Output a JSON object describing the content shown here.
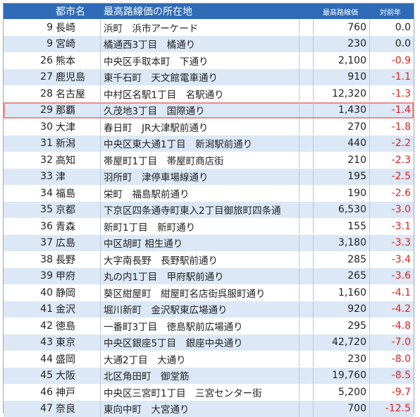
{
  "header": {
    "city": "都市名",
    "location": "最高路線価の所在地",
    "price": "最高路線価",
    "change": "対前年"
  },
  "rows": [
    {
      "rank": "9",
      "city": "長崎",
      "location": "浜町　浜市アーケード",
      "price": "760",
      "change": "0.0"
    },
    {
      "rank": "9",
      "city": "宮崎",
      "location": "橘通西3丁目　橘通り",
      "price": "230",
      "change": "0.0"
    },
    {
      "rank": "26",
      "city": "熊本",
      "location": "中央区手取本町　下通り",
      "price": "2,100",
      "change": "-0.9"
    },
    {
      "rank": "27",
      "city": "鹿児島",
      "location": "東千石町　天文館電車通り",
      "price": "910",
      "change": "-1.1"
    },
    {
      "rank": "28",
      "city": "名古屋",
      "location": "中村区名駅1丁目　名駅通り",
      "price": "12,320",
      "change": "-1.3"
    },
    {
      "rank": "29",
      "city": "那覇",
      "location": "久茂地3丁目　国際通り",
      "price": "1,430",
      "change": "-1.4"
    },
    {
      "rank": "30",
      "city": "大津",
      "location": "春日町　JR大津駅前通り",
      "price": "270",
      "change": "-1.8"
    },
    {
      "rank": "31",
      "city": "新潟",
      "location": "中央区東大通1丁目　新潟駅前通り",
      "price": "440",
      "change": "-2.2"
    },
    {
      "rank": "32",
      "city": "高知",
      "location": "帯屋町1丁目　帯屋町商店街",
      "price": "210",
      "change": "-2.3"
    },
    {
      "rank": "33",
      "city": "津",
      "location": "羽所町　津停車場線通り",
      "price": "195",
      "change": "-2.5"
    },
    {
      "rank": "34",
      "city": "福島",
      "location": "栄町　福島駅前通り",
      "price": "190",
      "change": "-2.6"
    },
    {
      "rank": "35",
      "city": "京都",
      "location": "下京区四条通寺町東入2丁目御旅町四条通",
      "price": "6,530",
      "change": "-3.0"
    },
    {
      "rank": "36",
      "city": "青森",
      "location": "新町1丁目　新町通り",
      "price": "155",
      "change": "-3.1"
    },
    {
      "rank": "37",
      "city": "広島",
      "location": "中区胡町 相生通り",
      "price": "3,180",
      "change": "-3.3"
    },
    {
      "rank": "38",
      "city": "長野",
      "location": "大字南長野　長野駅前通り",
      "price": "285",
      "change": "-3.4"
    },
    {
      "rank": "39",
      "city": "甲府",
      "location": "丸の内1丁目　甲府駅前通り",
      "price": "265",
      "change": "-3.6"
    },
    {
      "rank": "40",
      "city": "静岡",
      "location": "葵区紺屋町　紺屋町名店街呉服町通り",
      "price": "1,160",
      "change": "-4.1"
    },
    {
      "rank": "41",
      "city": "金沢",
      "location": "堀川新町　金沢駅東広場通り",
      "price": "920",
      "change": "-4.2"
    },
    {
      "rank": "42",
      "city": "徳島",
      "location": "一番町3丁目　徳島駅前広場通り",
      "price": "295",
      "change": "-4.8"
    },
    {
      "rank": "43",
      "city": "東京",
      "location": "中央区銀座5丁目　銀座中央通り",
      "price": "42,720",
      "change": "-7.0"
    },
    {
      "rank": "44",
      "city": "盛岡",
      "location": "大通2丁目　大通り",
      "price": "230",
      "change": "-8.0"
    },
    {
      "rank": "45",
      "city": "大阪",
      "location": "北区角田町　御堂筋",
      "price": "19,760",
      "change": "-8.5"
    },
    {
      "rank": "46",
      "city": "神戸",
      "location": "中央区三宮町1丁目　三宮センター街",
      "price": "5,200",
      "change": "-9.7"
    },
    {
      "rank": "47",
      "city": "奈良",
      "location": "東向中町　大宮通り",
      "price": "700",
      "change": "-12.5"
    }
  ],
  "highlighted_row": 5,
  "colors": {
    "header_bg": "#2f6bb7",
    "alt_row": "#dce8f6",
    "negative": "#e0201b",
    "highlight": "#f08a8a"
  }
}
